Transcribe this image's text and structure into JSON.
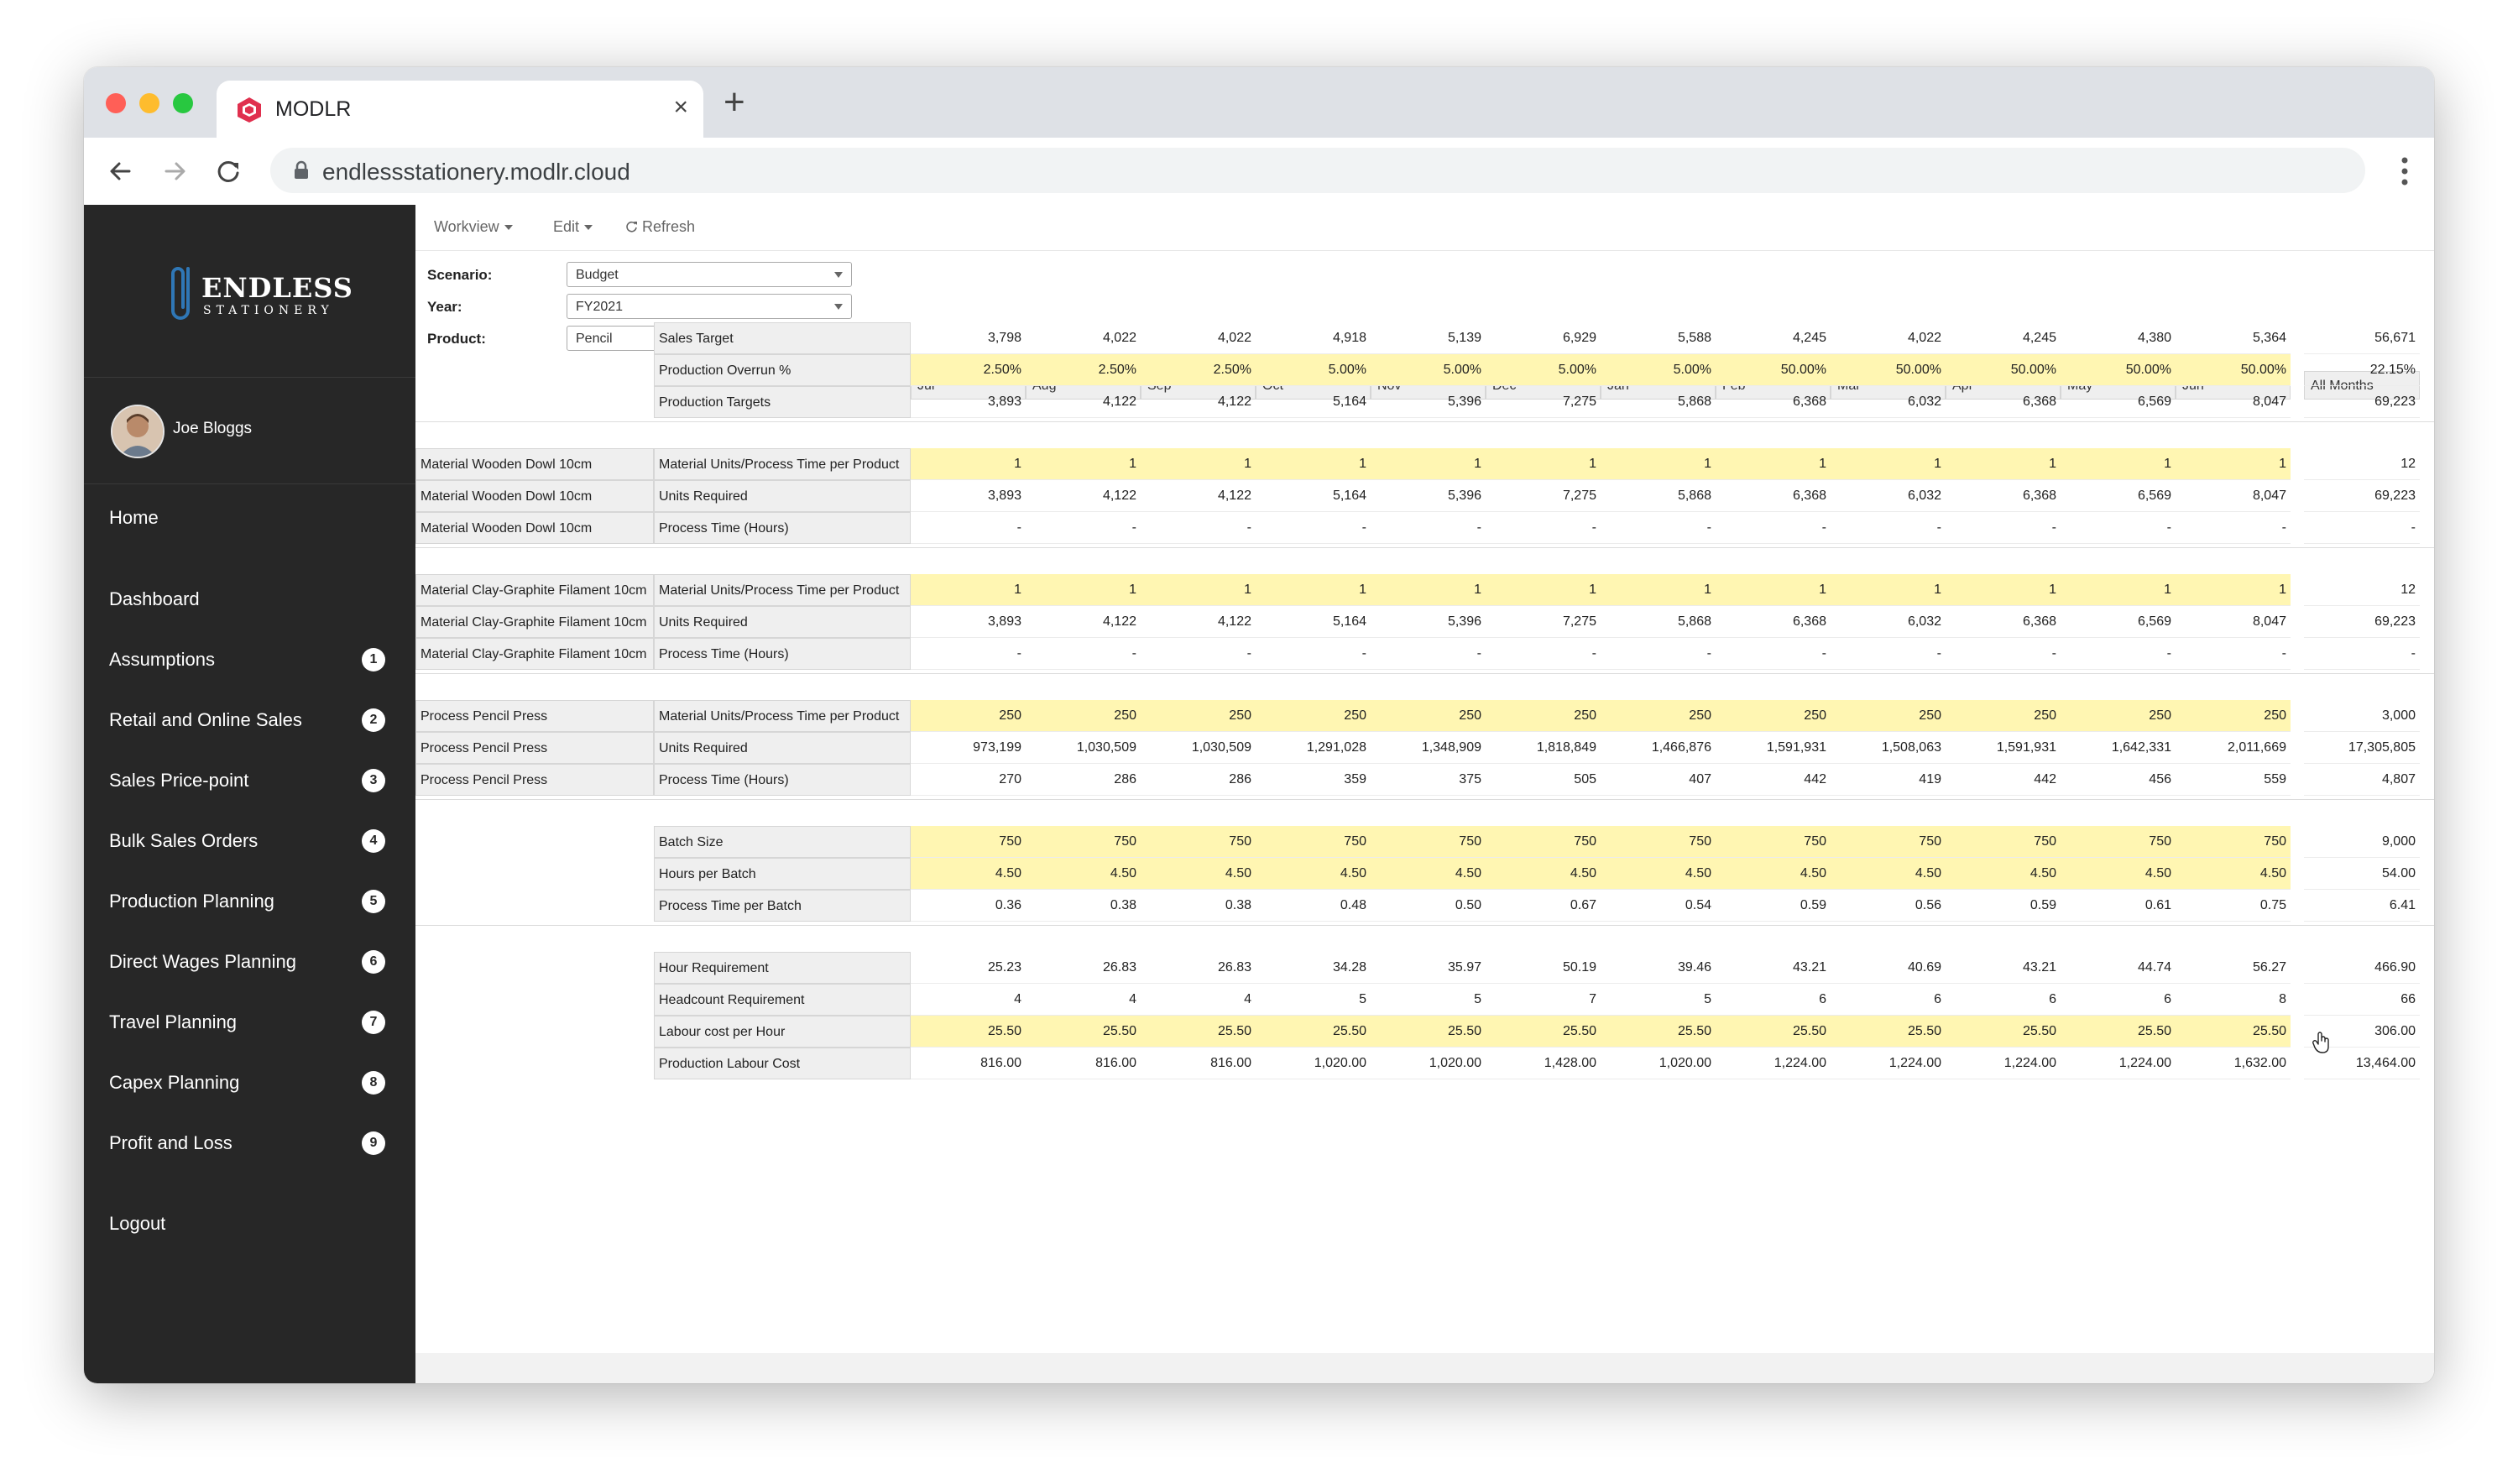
{
  "browser": {
    "tab_title": "MODLR",
    "url": "endlessstationery.modlr.cloud"
  },
  "brand": {
    "line1": "ENDLESS",
    "line2": "STATIONERY"
  },
  "user": {
    "name": "Joe Bloggs"
  },
  "nav": [
    {
      "label": "Home"
    },
    {
      "label": "Dashboard"
    },
    {
      "label": "Assumptions",
      "badge": "1"
    },
    {
      "label": "Retail and Online Sales",
      "badge": "2"
    },
    {
      "label": "Sales Price-point",
      "badge": "3"
    },
    {
      "label": "Bulk Sales Orders",
      "badge": "4"
    },
    {
      "label": "Production Planning",
      "badge": "5"
    },
    {
      "label": "Direct Wages Planning",
      "badge": "6"
    },
    {
      "label": "Travel Planning",
      "badge": "7"
    },
    {
      "label": "Capex Planning",
      "badge": "8"
    },
    {
      "label": "Profit and Loss",
      "badge": "9"
    },
    {
      "label": "Logout"
    }
  ],
  "menubar": {
    "workview": "Workview",
    "edit": "Edit",
    "refresh": "Refresh"
  },
  "selectors": [
    {
      "label": "Scenario:",
      "value": "Budget"
    },
    {
      "label": "Year:",
      "value": "FY2021"
    },
    {
      "label": "Product:",
      "value": "Pencil"
    }
  ],
  "columns": [
    "Jul",
    "Aug",
    "Sep",
    "Oct",
    "Nov",
    "Dec",
    "Jan",
    "Feb",
    "Mar",
    "Apr",
    "May",
    "Jun"
  ],
  "total_column": "All Months",
  "colors": {
    "sidebar": "#272727",
    "highlight": "#fff6b2",
    "brand": "#2f77b6"
  },
  "rows": [
    {
      "group": 0,
      "dim": "",
      "measure": "Sales Target",
      "yellow": false,
      "values": [
        "3,798",
        "4,022",
        "4,022",
        "4,918",
        "5,139",
        "6,929",
        "5,588",
        "4,245",
        "4,022",
        "4,245",
        "4,380",
        "5,364"
      ],
      "total": "56,671"
    },
    {
      "group": 0,
      "dim": "",
      "measure": "Production Overrun %",
      "yellow": true,
      "values": [
        "2.50%",
        "2.50%",
        "2.50%",
        "5.00%",
        "5.00%",
        "5.00%",
        "5.00%",
        "50.00%",
        "50.00%",
        "50.00%",
        "50.00%",
        "50.00%"
      ],
      "total": "22.15%"
    },
    {
      "group": 0,
      "dim": "",
      "measure": "Production Targets",
      "yellow": false,
      "values": [
        "3,893",
        "4,122",
        "4,122",
        "5,164",
        "5,396",
        "7,275",
        "5,868",
        "6,368",
        "6,032",
        "6,368",
        "6,569",
        "8,047"
      ],
      "total": "69,223"
    },
    {
      "group": 1,
      "dim": "Material Wooden Dowl 10cm",
      "measure": "Material Units/Process Time per Product",
      "yellow": true,
      "values": [
        "1",
        "1",
        "1",
        "1",
        "1",
        "1",
        "1",
        "1",
        "1",
        "1",
        "1",
        "1"
      ],
      "total": "12"
    },
    {
      "group": 1,
      "dim": "Material Wooden Dowl 10cm",
      "measure": "Units Required",
      "yellow": false,
      "values": [
        "3,893",
        "4,122",
        "4,122",
        "5,164",
        "5,396",
        "7,275",
        "5,868",
        "6,368",
        "6,032",
        "6,368",
        "6,569",
        "8,047"
      ],
      "total": "69,223"
    },
    {
      "group": 1,
      "dim": "Material Wooden Dowl 10cm",
      "measure": "Process Time (Hours)",
      "yellow": false,
      "values": [
        "-",
        "-",
        "-",
        "-",
        "-",
        "-",
        "-",
        "-",
        "-",
        "-",
        "-",
        "-"
      ],
      "total": "-"
    },
    {
      "group": 2,
      "dim": "Material Clay-Graphite Filament 10cm",
      "measure": "Material Units/Process Time per Product",
      "yellow": true,
      "values": [
        "1",
        "1",
        "1",
        "1",
        "1",
        "1",
        "1",
        "1",
        "1",
        "1",
        "1",
        "1"
      ],
      "total": "12"
    },
    {
      "group": 2,
      "dim": "Material Clay-Graphite Filament 10cm",
      "measure": "Units Required",
      "yellow": false,
      "values": [
        "3,893",
        "4,122",
        "4,122",
        "5,164",
        "5,396",
        "7,275",
        "5,868",
        "6,368",
        "6,032",
        "6,368",
        "6,569",
        "8,047"
      ],
      "total": "69,223"
    },
    {
      "group": 2,
      "dim": "Material Clay-Graphite Filament 10cm",
      "measure": "Process Time (Hours)",
      "yellow": false,
      "values": [
        "-",
        "-",
        "-",
        "-",
        "-",
        "-",
        "-",
        "-",
        "-",
        "-",
        "-",
        "-"
      ],
      "total": "-"
    },
    {
      "group": 3,
      "dim": "Process Pencil Press",
      "measure": "Material Units/Process Time per Product",
      "yellow": true,
      "values": [
        "250",
        "250",
        "250",
        "250",
        "250",
        "250",
        "250",
        "250",
        "250",
        "250",
        "250",
        "250"
      ],
      "total": "3,000"
    },
    {
      "group": 3,
      "dim": "Process Pencil Press",
      "measure": "Units Required",
      "yellow": false,
      "values": [
        "973,199",
        "1,030,509",
        "1,030,509",
        "1,291,028",
        "1,348,909",
        "1,818,849",
        "1,466,876",
        "1,591,931",
        "1,508,063",
        "1,591,931",
        "1,642,331",
        "2,011,669"
      ],
      "total": "17,305,805"
    },
    {
      "group": 3,
      "dim": "Process Pencil Press",
      "measure": "Process Time (Hours)",
      "yellow": false,
      "values": [
        "270",
        "286",
        "286",
        "359",
        "375",
        "505",
        "407",
        "442",
        "419",
        "442",
        "456",
        "559"
      ],
      "total": "4,807"
    },
    {
      "group": 4,
      "dim": "",
      "measure": "Batch Size",
      "yellow": true,
      "values": [
        "750",
        "750",
        "750",
        "750",
        "750",
        "750",
        "750",
        "750",
        "750",
        "750",
        "750",
        "750"
      ],
      "total": "9,000"
    },
    {
      "group": 4,
      "dim": "",
      "measure": "Hours per Batch",
      "yellow": true,
      "values": [
        "4.50",
        "4.50",
        "4.50",
        "4.50",
        "4.50",
        "4.50",
        "4.50",
        "4.50",
        "4.50",
        "4.50",
        "4.50",
        "4.50"
      ],
      "total": "54.00"
    },
    {
      "group": 4,
      "dim": "",
      "measure": "Process Time per Batch",
      "yellow": false,
      "values": [
        "0.36",
        "0.38",
        "0.38",
        "0.48",
        "0.50",
        "0.67",
        "0.54",
        "0.59",
        "0.56",
        "0.59",
        "0.61",
        "0.75"
      ],
      "total": "6.41"
    },
    {
      "group": 5,
      "dim": "",
      "measure": "Hour Requirement",
      "yellow": false,
      "values": [
        "25.23",
        "26.83",
        "26.83",
        "34.28",
        "35.97",
        "50.19",
        "39.46",
        "43.21",
        "40.69",
        "43.21",
        "44.74",
        "56.27"
      ],
      "total": "466.90"
    },
    {
      "group": 5,
      "dim": "",
      "measure": "Headcount Requirement",
      "yellow": false,
      "values": [
        "4",
        "4",
        "4",
        "5",
        "5",
        "7",
        "5",
        "6",
        "6",
        "6",
        "6",
        "8"
      ],
      "total": "66"
    },
    {
      "group": 5,
      "dim": "",
      "measure": "Labour cost per Hour",
      "yellow": true,
      "values": [
        "25.50",
        "25.50",
        "25.50",
        "25.50",
        "25.50",
        "25.50",
        "25.50",
        "25.50",
        "25.50",
        "25.50",
        "25.50",
        "25.50"
      ],
      "total": "306.00"
    },
    {
      "group": 5,
      "dim": "",
      "measure": "Production Labour Cost",
      "yellow": false,
      "values": [
        "816.00",
        "816.00",
        "816.00",
        "1,020.00",
        "1,020.00",
        "1,428.00",
        "1,020.00",
        "1,224.00",
        "1,224.00",
        "1,224.00",
        "1,224.00",
        "1,632.00"
      ],
      "total": "13,464.00"
    }
  ]
}
